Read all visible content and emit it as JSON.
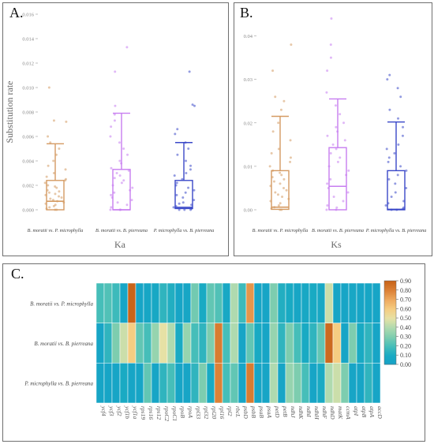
{
  "chart_data": [
    {
      "panel": "A.",
      "type": "box",
      "xlabel": "Ka",
      "ylabel": "Substitution rate",
      "ylim": [
        0,
        0.016
      ],
      "yticks": [
        "0.000",
        "0.002",
        "0.004",
        "0.006",
        "0.008",
        "0.010",
        "0.012",
        "0.014",
        "0.016"
      ],
      "grid": false,
      "categories": [
        "B. moratii vs. P. microphylla",
        "B. moratii vs. B. pierreana",
        "P. microphylla vs. B. pierreana"
      ],
      "colors": [
        "#d49a62",
        "#c77df0",
        "#3a48c8"
      ],
      "boxes": [
        {
          "min": 0.0,
          "q1": 0.0,
          "median": 0.0007,
          "q3": 0.0024,
          "max": 0.0054
        },
        {
          "min": 0.0,
          "q1": 0.0,
          "median": 0.0,
          "q3": 0.0033,
          "max": 0.0079
        },
        {
          "min": 0.0,
          "q1": 0.0001,
          "median": 0.0002,
          "q3": 0.0024,
          "max": 0.0055
        }
      ],
      "points": [
        [
          0.0,
          0.0,
          0.0001,
          0.0002,
          0.0003,
          0.0004,
          0.0005,
          0.0006,
          0.0007,
          0.0008,
          0.0009,
          0.001,
          0.0011,
          0.0012,
          0.0013,
          0.0014,
          0.0015,
          0.0016,
          0.0018,
          0.0019,
          0.002,
          0.0022,
          0.0024,
          0.0025,
          0.0027,
          0.003,
          0.0033,
          0.0036,
          0.004,
          0.0045,
          0.005,
          0.0055,
          0.006,
          0.0072,
          0.0073,
          0.01
        ],
        [
          0.0,
          0.0,
          0.0,
          0.0002,
          0.0004,
          0.0006,
          0.0008,
          0.001,
          0.0012,
          0.0014,
          0.0016,
          0.0018,
          0.002,
          0.0022,
          0.0024,
          0.0026,
          0.0028,
          0.003,
          0.0032,
          0.0034,
          0.0038,
          0.004,
          0.0045,
          0.005,
          0.0055,
          0.006,
          0.0068,
          0.0073,
          0.0078,
          0.0085,
          0.0113,
          0.0133
        ],
        [
          0.0,
          0.0,
          0.0,
          0.0001,
          0.0002,
          0.0003,
          0.0004,
          0.0005,
          0.0006,
          0.0008,
          0.001,
          0.0012,
          0.0014,
          0.0016,
          0.0018,
          0.002,
          0.0022,
          0.0025,
          0.0028,
          0.003,
          0.0033,
          0.0036,
          0.004,
          0.0045,
          0.005,
          0.0055,
          0.0062,
          0.0066,
          0.0085,
          0.0086,
          0.0113
        ]
      ]
    },
    {
      "panel": "B.",
      "type": "box",
      "xlabel": "Ks",
      "ylabel": "",
      "ylim": [
        0,
        0.045
      ],
      "yticks": [
        "0.00",
        "0.01",
        "0.02",
        "0.03",
        "0.04"
      ],
      "grid": false,
      "categories": [
        "B. moratii vs. P. microphylla",
        "B. moratii vs. B. pierreana",
        "P. microphylla vs. B. pierreana"
      ],
      "colors": [
        "#d49a62",
        "#c77df0",
        "#3a48c8"
      ],
      "boxes": [
        {
          "min": 0.0,
          "q1": 0.0001,
          "median": 0.0006,
          "q3": 0.009,
          "max": 0.0215
        },
        {
          "min": 0.0,
          "q1": 0.0,
          "median": 0.0054,
          "q3": 0.0143,
          "max": 0.0255
        },
        {
          "min": 0.0,
          "q1": 0.0,
          "median": 0.0001,
          "q3": 0.009,
          "max": 0.0202
        }
      ],
      "points": [
        [
          0.0,
          0.0,
          0.0003,
          0.0006,
          0.001,
          0.0015,
          0.002,
          0.0025,
          0.003,
          0.0035,
          0.004,
          0.0045,
          0.005,
          0.0055,
          0.006,
          0.0065,
          0.007,
          0.0075,
          0.008,
          0.0085,
          0.009,
          0.01,
          0.011,
          0.012,
          0.013,
          0.014,
          0.016,
          0.018,
          0.02,
          0.023,
          0.025,
          0.026,
          0.032,
          0.038
        ],
        [
          0.0,
          0.0,
          0.0005,
          0.001,
          0.002,
          0.003,
          0.004,
          0.005,
          0.006,
          0.007,
          0.008,
          0.009,
          0.01,
          0.011,
          0.012,
          0.013,
          0.014,
          0.015,
          0.016,
          0.017,
          0.018,
          0.019,
          0.02,
          0.022,
          0.024,
          0.027,
          0.032,
          0.035,
          0.038,
          0.044
        ],
        [
          0.0,
          0.0,
          0.0002,
          0.0005,
          0.001,
          0.0015,
          0.002,
          0.003,
          0.004,
          0.005,
          0.006,
          0.007,
          0.008,
          0.009,
          0.01,
          0.011,
          0.012,
          0.013,
          0.014,
          0.015,
          0.017,
          0.019,
          0.021,
          0.023,
          0.026,
          0.028,
          0.03,
          0.031
        ]
      ]
    },
    {
      "panel": "C.",
      "type": "heatmap",
      "rows": [
        "B. moratii vs. P. microphylla",
        "B. moratii vs. B. pierreana",
        "P. microphylla vs. B. pierreana"
      ],
      "columns": [
        "ycf4",
        "ycf3",
        "ycf2",
        "ycf1b",
        "ycf1a",
        "rps19",
        "rps16",
        "rps12",
        "rpoC2",
        "rpoC1",
        "rpoB",
        "rpoA",
        "rpl33",
        "rpl32",
        "rpl20",
        "rpl16",
        "rpl2",
        "rbcL",
        "psbD",
        "psbB",
        "psaB",
        "psaA",
        "petD",
        "petB",
        "ndhJ",
        "ndhK",
        "ndhI",
        "ndhH",
        "ndhF",
        "ndhD",
        "matK",
        "ccmA",
        "atpI",
        "atpB",
        "atpA",
        "accD"
      ],
      "values": [
        [
          0.2,
          0.22,
          0.18,
          0.05,
          0.9,
          0.05,
          0.06,
          0.08,
          0.15,
          0.12,
          0.05,
          0.06,
          0.28,
          0.1,
          0.25,
          0.22,
          0.08,
          0.4,
          0.18,
          0.75,
          0.05,
          0.05,
          0.3,
          0.12,
          0.1,
          0.06,
          0.08,
          0.1,
          0.08,
          0.45,
          0.05,
          0.05,
          0.07,
          0.05,
          0.06,
          0.05
        ],
        [
          0.05,
          0.15,
          0.3,
          0.45,
          0.6,
          0.25,
          0.2,
          0.35,
          0.5,
          0.4,
          0.1,
          0.35,
          0.2,
          0.15,
          0.3,
          0.82,
          0.2,
          0.4,
          0.05,
          0.25,
          0.1,
          0.05,
          0.35,
          0.15,
          0.3,
          0.2,
          0.1,
          0.15,
          0.25,
          0.88,
          0.6,
          0.05,
          0.3,
          0.1,
          0.15,
          0.05
        ],
        [
          0.05,
          0.05,
          0.05,
          0.1,
          0.05,
          0.05,
          0.25,
          0.05,
          0.15,
          0.2,
          0.05,
          0.05,
          0.15,
          0.3,
          0.1,
          0.8,
          0.2,
          0.25,
          0.05,
          0.82,
          0.05,
          0.05,
          0.4,
          0.05,
          0.35,
          0.3,
          0.2,
          0.05,
          0.1,
          0.4,
          0.45,
          0.3,
          0.05,
          0.05,
          0.15,
          0.05
        ]
      ],
      "colorbar_ticks": [
        "0.00",
        "0.10",
        "0.20",
        "0.30",
        "0.40",
        "0.50",
        "0.60",
        "0.70",
        "0.80",
        "0.90"
      ],
      "vmin": 0,
      "vmax": 0.9
    }
  ]
}
